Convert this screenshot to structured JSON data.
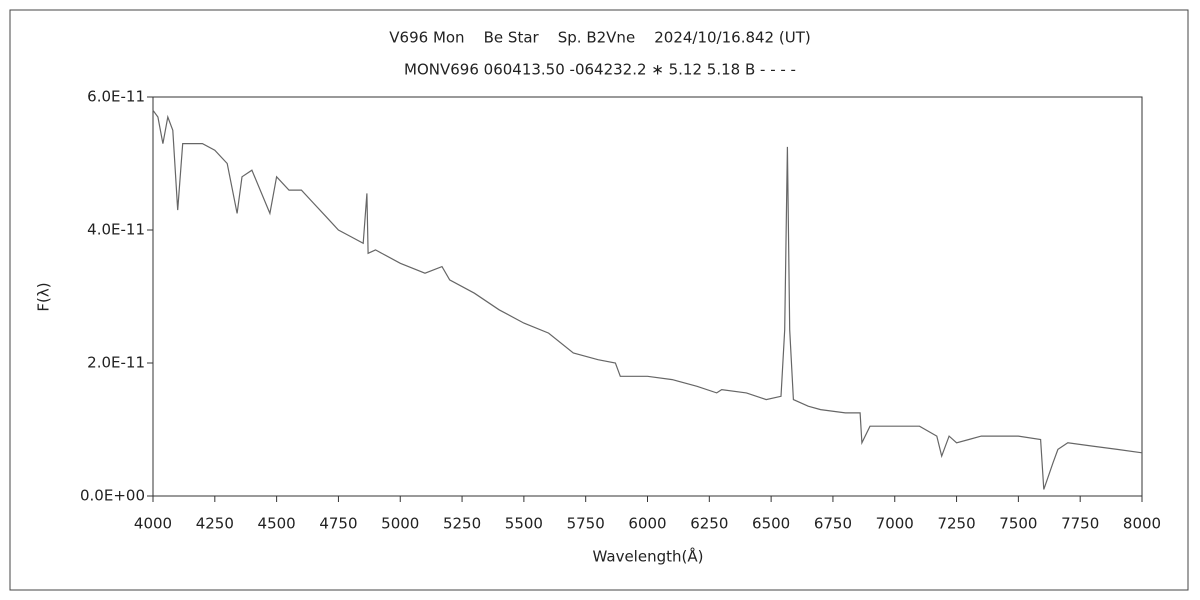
{
  "chart_data": {
    "type": "line",
    "title": "V696 Mon    Be Star    Sp. B2Vne    2024/10/16.842 (UT)",
    "subtitle": "MONV696 060413.50 -064232.2 ∗ 5.12 5.18 B - - - -",
    "x_label": "Wavelength(Å)",
    "y_label": "F(λ)",
    "xlim": [
      4000,
      8000
    ],
    "xticks": [
      4000,
      4250,
      4500,
      4750,
      5000,
      5250,
      5500,
      5750,
      6000,
      6250,
      6500,
      6750,
      7000,
      7250,
      7500,
      7750,
      8000
    ],
    "ylim": [
      0,
      6e-11
    ],
    "yticks": [
      {
        "value": 0,
        "label": "0.0E+00"
      },
      {
        "value": 2e-11,
        "label": "2.0E-11"
      },
      {
        "value": 4e-11,
        "label": "4.0E-11"
      },
      {
        "value": 6e-11,
        "label": "6.0E-11"
      }
    ],
    "grid": false,
    "x": [
      4000,
      4020,
      4040,
      4060,
      4080,
      4100,
      4120,
      4150,
      4200,
      4250,
      4300,
      4340,
      4360,
      4400,
      4473,
      4500,
      4550,
      4600,
      4650,
      4700,
      4750,
      4800,
      4850,
      4865,
      4870,
      4900,
      5000,
      5100,
      5169,
      5200,
      5300,
      5400,
      5500,
      5600,
      5700,
      5800,
      5870,
      5890,
      6000,
      6100,
      6200,
      6280,
      6300,
      6400,
      6480,
      6540,
      6555,
      6566,
      6575,
      6590,
      6650,
      6700,
      6800,
      6860,
      6867,
      6900,
      7000,
      7100,
      7170,
      7190,
      7220,
      7250,
      7300,
      7350,
      7500,
      7590,
      7603,
      7640,
      7660,
      7700,
      7800,
      7900,
      8000
    ],
    "series": [
      {
        "name": "F",
        "color": "#666666",
        "values": [
          5.8e-11,
          5.7e-11,
          5.3e-11,
          5.7e-11,
          5.5e-11,
          4.3e-11,
          5.3e-11,
          5.3e-11,
          5.3e-11,
          5.2e-11,
          5e-11,
          4.25e-11,
          4.8e-11,
          4.9e-11,
          4.25e-11,
          4.8e-11,
          4.6e-11,
          4.6e-11,
          4.4e-11,
          4.2e-11,
          4e-11,
          3.9e-11,
          3.8e-11,
          4.55e-11,
          3.65e-11,
          3.7e-11,
          3.5e-11,
          3.35e-11,
          3.45e-11,
          3.25e-11,
          3.05e-11,
          2.8e-11,
          2.6e-11,
          2.45e-11,
          2.15e-11,
          2.05e-11,
          2e-11,
          1.8e-11,
          1.8e-11,
          1.75e-11,
          1.65e-11,
          1.55e-11,
          1.6e-11,
          1.55e-11,
          1.45e-11,
          1.5e-11,
          2.5e-11,
          5.25e-11,
          2.5e-11,
          1.45e-11,
          1.35e-11,
          1.3e-11,
          1.25e-11,
          1.25e-11,
          8e-12,
          1.05e-11,
          1.05e-11,
          1.05e-11,
          9e-12,
          6e-12,
          9e-12,
          8e-12,
          8.5e-12,
          9e-12,
          9e-12,
          8.5e-12,
          1e-12,
          5e-12,
          7e-12,
          8e-12,
          7.5e-12,
          7e-12,
          6.5e-12
        ]
      }
    ]
  }
}
